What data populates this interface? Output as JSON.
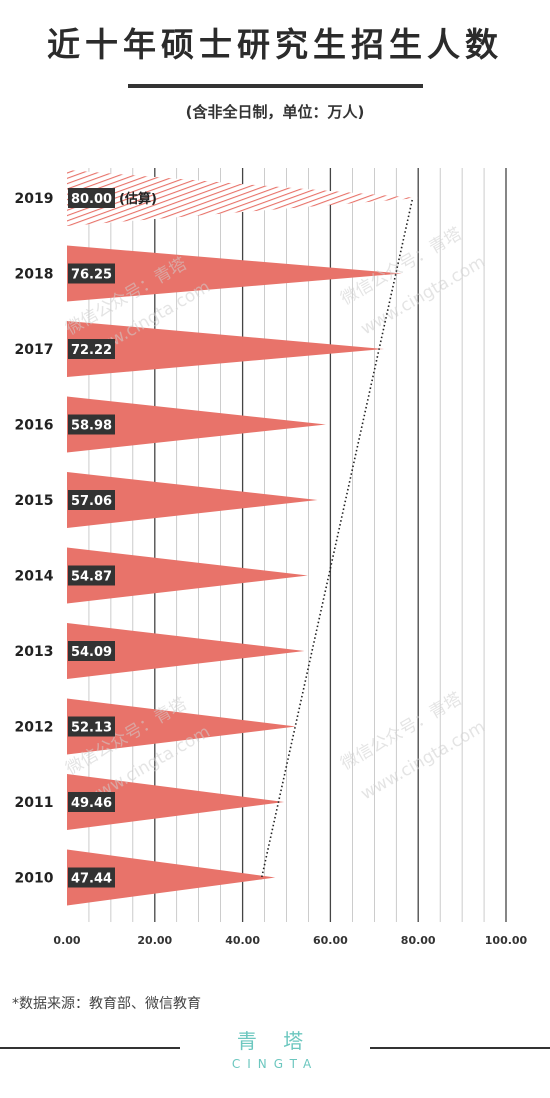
{
  "title": "近十年硕士研究生招生人数",
  "subtitle": "(含非全日制，单位：万人)",
  "chart_data": {
    "type": "bar",
    "orientation": "horizontal",
    "categories": [
      "2019",
      "2018",
      "2017",
      "2016",
      "2015",
      "2014",
      "2013",
      "2012",
      "2011",
      "2010"
    ],
    "values": [
      80.0,
      76.25,
      72.22,
      58.98,
      57.06,
      54.87,
      54.09,
      52.13,
      49.46,
      47.44
    ],
    "value_labels": [
      "80.00",
      "76.25",
      "72.22",
      "58.98",
      "57.06",
      "54.87",
      "54.09",
      "52.13",
      "49.46",
      "47.44"
    ],
    "estimated_note": "(估算)",
    "estimated_category": "2019",
    "xlim": [
      0,
      100
    ],
    "xticks": [
      "0.00",
      "20.00",
      "40.00",
      "60.00",
      "80.00",
      "100.00"
    ],
    "grid": true,
    "trend_line": "dotted"
  },
  "colors": {
    "bar": "#e8736a",
    "label_box": "#333333",
    "grid": "#444444",
    "brand": "#6cc7bf"
  },
  "watermarks": [
    "微信公众号：青塔",
    "www.cingta.com"
  ],
  "source": "*数据来源：教育部、微信教育",
  "brand": {
    "name": "青 塔",
    "name_en": "CINGTA"
  }
}
